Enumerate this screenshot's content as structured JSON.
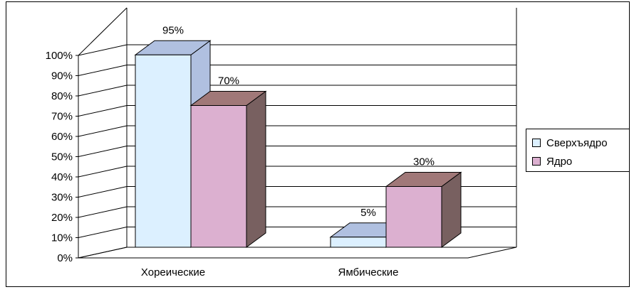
{
  "chart_data": {
    "type": "bar",
    "categories": [
      "Хореические",
      "Ямбические"
    ],
    "series": [
      {
        "name": "Сверхъядро",
        "values": [
          95,
          5
        ],
        "labels": [
          "95%",
          "5%"
        ],
        "color": "#dcf0ff",
        "top_color": "#b0c0e0",
        "side_color": "#b0c0e0"
      },
      {
        "name": "Ядро",
        "values": [
          70,
          30
        ],
        "labels": [
          "70%",
          "30%"
        ],
        "color": "#dcb0d0",
        "top_color": "#a07878",
        "side_color": "#786060"
      }
    ],
    "ylim": [
      0,
      100
    ],
    "yticks": [
      "0%",
      "10%",
      "20%",
      "30%",
      "40%",
      "50%",
      "60%",
      "70%",
      "80%",
      "90%",
      "100%"
    ],
    "grid": true,
    "legend_position": "right"
  }
}
